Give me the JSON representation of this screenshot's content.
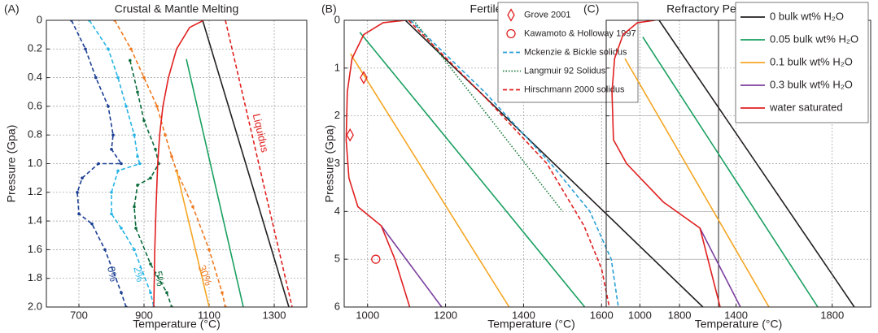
{
  "chart_data": [
    {
      "type": "line",
      "panel_label": "(A)",
      "title": "Crustal & Mantle Melting",
      "xlabel": "Temperature (°C)",
      "ylabel": "Pressure (Gpa)",
      "xlim": [
        600,
        1400
      ],
      "xticks": [
        700,
        900,
        1100,
        1300
      ],
      "ylim": [
        0,
        2
      ],
      "y_inverted": true,
      "yticks": [
        0,
        0.2,
        0.4,
        0.6,
        0.8,
        {
          "value": 1,
          "label": "1.0"
        },
        1.2,
        1.4,
        1.6,
        1.8,
        {
          "value": 2,
          "label": "2.0"
        }
      ],
      "grid": true,
      "series": [
        {
          "color": "#1b3f94",
          "dash": "dashed",
          "marker": "dot",
          "label": "0%",
          "x": [
            677,
            720,
            752,
            790,
            805,
            800,
            830,
            760,
            710,
            695,
            700,
            740,
            780,
            830,
            845
          ],
          "values": [
            0,
            0.2,
            0.4,
            0.6,
            0.8,
            0.9,
            1,
            1,
            1.1,
            1.2,
            1.35,
            1.42,
            1.6,
            1.9,
            2
          ]
        },
        {
          "color": "#26b4e6",
          "dash": "dashed",
          "marker": "dot",
          "label": "2%",
          "x": [
            732,
            790,
            820,
            845,
            870,
            880,
            887,
            820,
            800,
            800,
            830,
            870,
            920,
            930
          ],
          "values": [
            0,
            0.2,
            0.4,
            0.6,
            0.8,
            0.95,
            1,
            1.05,
            1.2,
            1.35,
            1.45,
            1.6,
            1.9,
            2
          ]
        },
        {
          "color": "#0c6b3b",
          "dash": "dashed",
          "marker": "dot",
          "label": "5%",
          "x": [
            857,
            880,
            900,
            935,
            945,
            920,
            880,
            870,
            875,
            920,
            970,
            985
          ],
          "values": [
            0.28,
            0.5,
            0.7,
            0.9,
            1,
            1.1,
            1.15,
            1.3,
            1.45,
            1.7,
            1.9,
            2
          ]
        },
        {
          "color": "#f07a20",
          "dash": "dashed",
          "marker": "dot",
          "label": "30%",
          "x": [
            810,
            860,
            900,
            940,
            965,
            985,
            1000,
            1050,
            1100,
            1140,
            1150
          ],
          "values": [
            0,
            0.2,
            0.4,
            0.6,
            0.8,
            0.95,
            1.05,
            1.3,
            1.6,
            1.9,
            2
          ]
        },
        {
          "color": "#231f20",
          "dash": "solid",
          "x": [
            1080,
            1345
          ],
          "values": [
            0,
            2
          ]
        },
        {
          "color": "#1aa060",
          "dash": "solid",
          "x": [
            1030,
            1205
          ],
          "values": [
            0.27,
            2
          ]
        },
        {
          "color": "#f5a623",
          "dash": "solid",
          "x": [
            1000,
            1100
          ],
          "values": [
            1.05,
            2
          ]
        },
        {
          "color": "#e02020",
          "dash": "solid",
          "x": [
            1083,
            1040,
            1000,
            975,
            958,
            948,
            942,
            937,
            933,
            930
          ],
          "values": [
            0,
            0.05,
            0.2,
            0.4,
            0.6,
            0.8,
            1,
            1.3,
            1.6,
            2
          ]
        },
        {
          "color": "#e02020",
          "dash": "dashed",
          "label": "Liquidus",
          "x": [
            1150,
            1355
          ],
          "values": [
            0,
            2
          ]
        }
      ]
    },
    {
      "type": "line",
      "panel_label": "(B)",
      "title": "Fertile Peridotite Melting",
      "xlabel": "Temperature (°C)",
      "ylabel": "Pressure (Gpa)",
      "xlim": [
        940,
        1900
      ],
      "xticks": [
        1000,
        1200,
        1400,
        1600,
        1800
      ],
      "ylim": [
        0,
        6
      ],
      "y_inverted": true,
      "yticks": [
        0,
        1,
        2,
        3,
        4,
        5,
        6
      ],
      "grid": true,
      "legend": "upper center",
      "series": [
        {
          "color": "#231f20",
          "dash": "solid",
          "x": [
            1097,
            1860
          ],
          "values": [
            0,
            6
          ]
        },
        {
          "color": "#1aa060",
          "dash": "solid",
          "x": [
            980,
            1557
          ],
          "values": [
            0.25,
            6
          ]
        },
        {
          "color": "#f5a623",
          "dash": "solid",
          "x": [
            956,
            1363
          ],
          "values": [
            0.7,
            6
          ]
        },
        {
          "color": "#7b3f9e",
          "dash": "solid",
          "x": [
            1035,
            1190
          ],
          "values": [
            4.3,
            6
          ]
        },
        {
          "color": "#e02020",
          "dash": "solid",
          "x": [
            1097,
            1040,
            990,
            960,
            948,
            945,
            952,
            975,
            1035,
            1070,
            1108
          ],
          "values": [
            0,
            0.05,
            0.3,
            0.8,
            1.5,
            2.5,
            3.3,
            3.9,
            4.3,
            5,
            6
          ]
        },
        {
          "name": "Grove 2001",
          "color": "#e02020",
          "dash": "none",
          "marker": "diamond",
          "x": [
            990,
            955
          ],
          "values": [
            1.2,
            2.4
          ]
        },
        {
          "name": "Kawamoto & Holloway 1997",
          "color": "#e02020",
          "dash": "none",
          "marker": "circle",
          "x": [
            1021
          ],
          "values": [
            5
          ]
        },
        {
          "name": "Mckenzie & Bickle solidus",
          "color": "#2a9fd6",
          "dash": "dashed",
          "x": [
            1110,
            1300,
            1470,
            1570,
            1625,
            1643
          ],
          "values": [
            0,
            1.5,
            3,
            4,
            5,
            6
          ]
        },
        {
          "name": "Langmuir 92 Solidus",
          "color": "#1a7a3a",
          "dash": "dotted",
          "x": [
            1118,
            1500
          ],
          "values": [
            0,
            4
          ]
        },
        {
          "name": "Hirschmann 2000 solidus",
          "color": "#e02020",
          "dash": "dashed",
          "x": [
            1105,
            1300,
            1460,
            1555,
            1600,
            1620
          ],
          "values": [
            0,
            1.6,
            3,
            4.3,
            5.2,
            6
          ]
        }
      ]
    },
    {
      "type": "line",
      "panel_label": "(C)",
      "title": "Refractory Peridotite Melting",
      "xlabel": "Temperature (°C)",
      "xlim": [
        860,
        1960
      ],
      "xticks": [
        1000,
        1400,
        1800
      ],
      "ylim": [
        0,
        6
      ],
      "y_inverted": true,
      "yticks": [
        0,
        1,
        2,
        3,
        4,
        5,
        6
      ],
      "ytick_labels": false,
      "grid": true,
      "legend": "upper right",
      "series": [
        {
          "name": "0 bulk wt% H₂O",
          "color": "#231f20",
          "dash": "solid",
          "x": [
            1080,
            1892
          ],
          "values": [
            0,
            6
          ]
        },
        {
          "name": "0.05 bulk wt% H₂O",
          "color": "#1aa060",
          "dash": "solid",
          "x": [
            1012,
            1740
          ],
          "values": [
            0.35,
            6
          ]
        },
        {
          "name": "0.1 bulk wt% H₂O",
          "color": "#f5a623",
          "dash": "solid",
          "x": [
            938,
            1537
          ],
          "values": [
            0.8,
            6
          ]
        },
        {
          "name": "0.3 bulk wt% H₂O",
          "color": "#7b3f9e",
          "dash": "solid",
          "x": [
            1250,
            1418
          ],
          "values": [
            4.35,
            6
          ]
        },
        {
          "name": "water saturated",
          "color": "#e02020",
          "dash": "solid",
          "x": [
            1063,
            990,
            930,
            895,
            884,
            890,
            945,
            1097,
            1250,
            1334
          ],
          "values": [
            0,
            0.05,
            0.3,
            0.8,
            1.5,
            2.5,
            3,
            3.8,
            4.35,
            6
          ]
        }
      ]
    }
  ]
}
